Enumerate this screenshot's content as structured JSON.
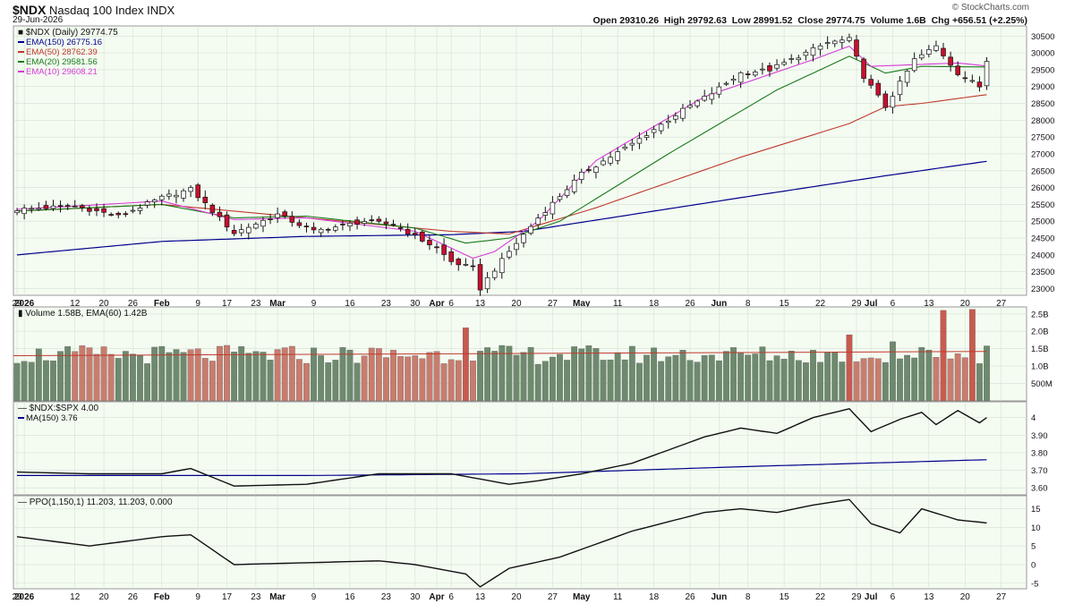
{
  "header": {
    "symbol": "$NDX",
    "name": "Nasdaq 100 Index",
    "exchange": "INDX",
    "date": "29-Jun-2026",
    "brand": "© StockCharts.com",
    "open_label": "Open",
    "open": "29310.26",
    "high_label": "High",
    "high": "29792.63",
    "low_label": "Low",
    "low": "28991.52",
    "close_label": "Close",
    "close": "29774.75",
    "volume_label": "Volume",
    "volume": "1.6B",
    "chg_label": "Chg",
    "chg": "+656.51 (+2.25%)"
  },
  "colors": {
    "panel_bg": "#f4fcf2",
    "up_candle": "#ffffff",
    "down_candle": "#c8102e",
    "ema150": "#00008b",
    "ema50": "#c0392b",
    "ema20": "#1a7a1a",
    "ema10": "#d63ad6",
    "vol_up": "#6e8a6e",
    "vol_down": "#c97c6e",
    "vol_spike_down": "#c85a4f",
    "ratio_line": "#111111",
    "ratio_ma": "#00008b",
    "ppo_line": "#111111",
    "ppo_signal": "#c0392b",
    "ppo_hist": "#1e88e5"
  },
  "chart_data": [
    {
      "type": "candlestick",
      "title": "$NDX (Daily) 29774.75",
      "legend": [
        {
          "label": "EMA(150) 26775.16",
          "color": "#00008b"
        },
        {
          "label": "EMA(50) 28762.39",
          "color": "#c0392b"
        },
        {
          "label": "EMA(20) 29581.56",
          "color": "#1a7a1a"
        },
        {
          "label": "EMA(10) 29608.21",
          "color": "#d63ad6"
        }
      ],
      "legend_position": "top-left",
      "ylim": [
        22800,
        30800
      ],
      "yticks": [
        23000,
        23500,
        24000,
        24500,
        25000,
        25500,
        26000,
        26500,
        27000,
        27500,
        28000,
        28500,
        29000,
        29500,
        30000,
        30500
      ],
      "y_axis_side": "right",
      "close_path": [
        [
          0,
          25350
        ],
        [
          8,
          25450
        ],
        [
          14,
          25150
        ],
        [
          20,
          25700
        ],
        [
          24,
          25950
        ],
        [
          30,
          24650
        ],
        [
          36,
          25200
        ],
        [
          41,
          24700
        ],
        [
          48,
          25000
        ],
        [
          52,
          24900
        ],
        [
          58,
          24200
        ],
        [
          60,
          23800
        ],
        [
          63,
          23600
        ],
        [
          64,
          23000
        ],
        [
          65,
          23300
        ],
        [
          68,
          24100
        ],
        [
          72,
          25100
        ],
        [
          78,
          26400
        ],
        [
          85,
          27300
        ],
        [
          92,
          28300
        ],
        [
          96,
          28800
        ],
        [
          100,
          29400
        ],
        [
          104,
          29500
        ],
        [
          108,
          29900
        ],
        [
          112,
          30300
        ],
        [
          115,
          30400
        ],
        [
          117,
          29300
        ],
        [
          120,
          28400
        ],
        [
          124,
          29800
        ],
        [
          127,
          30200
        ],
        [
          130,
          29400
        ],
        [
          133,
          29000
        ],
        [
          134,
          29774.75
        ]
      ],
      "ema150_path": [
        [
          0,
          24000
        ],
        [
          20,
          24400
        ],
        [
          40,
          24550
        ],
        [
          60,
          24600
        ],
        [
          70,
          24700
        ],
        [
          100,
          25700
        ],
        [
          120,
          26350
        ],
        [
          134,
          26780
        ]
      ],
      "ema50_path": [
        [
          0,
          25300
        ],
        [
          20,
          25500
        ],
        [
          40,
          25100
        ],
        [
          60,
          24700
        ],
        [
          68,
          24620
        ],
        [
          80,
          25400
        ],
        [
          100,
          26900
        ],
        [
          115,
          27900
        ],
        [
          120,
          28400
        ],
        [
          125,
          28500
        ],
        [
          134,
          28760
        ]
      ],
      "ema20_path": [
        [
          0,
          25300
        ],
        [
          20,
          25500
        ],
        [
          30,
          25100
        ],
        [
          40,
          25150
        ],
        [
          55,
          24800
        ],
        [
          62,
          24350
        ],
        [
          68,
          24500
        ],
        [
          75,
          25000
        ],
        [
          90,
          27000
        ],
        [
          105,
          28900
        ],
        [
          115,
          29900
        ],
        [
          120,
          29400
        ],
        [
          125,
          29600
        ],
        [
          134,
          29580
        ]
      ],
      "ema10_path": [
        [
          0,
          25350
        ],
        [
          20,
          25600
        ],
        [
          30,
          25050
        ],
        [
          40,
          25100
        ],
        [
          55,
          24700
        ],
        [
          63,
          23900
        ],
        [
          66,
          24100
        ],
        [
          72,
          25000
        ],
        [
          80,
          26800
        ],
        [
          95,
          28700
        ],
        [
          110,
          29800
        ],
        [
          115,
          30200
        ],
        [
          118,
          29600
        ],
        [
          124,
          29650
        ],
        [
          130,
          29700
        ],
        [
          134,
          29610
        ]
      ]
    },
    {
      "type": "bar",
      "title": "Volume 1.58B, EMA(60) 1.42B",
      "ylim": [
        0,
        2.7
      ],
      "yticks": [
        {
          "v": 0.5,
          "label": "500M"
        },
        {
          "v": 1.0,
          "label": "1.0B"
        },
        {
          "v": 1.5,
          "label": "1.5B"
        },
        {
          "v": 2.0,
          "label": "2.0B"
        },
        {
          "v": 2.5,
          "label": "2.5B"
        }
      ],
      "ema_value": 1.42,
      "spikes": [
        {
          "i": 62,
          "v": 2.1
        },
        {
          "i": 115,
          "v": 1.9
        },
        {
          "i": 121,
          "v": 1.7
        },
        {
          "i": 128,
          "v": 2.6
        },
        {
          "i": 132,
          "v": 2.63
        },
        {
          "i": 134,
          "v": 1.58
        }
      ]
    },
    {
      "type": "line",
      "title": "$NDX:$SPX 4.00",
      "legend": [
        {
          "label": "MA(150) 3.76",
          "color": "#00008b"
        }
      ],
      "ylim": [
        3.56,
        4.09
      ],
      "yticks": [
        3.6,
        3.7,
        3.8,
        3.9,
        4.0
      ],
      "ratio_path": [
        [
          0,
          3.69
        ],
        [
          10,
          3.68
        ],
        [
          20,
          3.68
        ],
        [
          24,
          3.71
        ],
        [
          30,
          3.61
        ],
        [
          40,
          3.62
        ],
        [
          50,
          3.68
        ],
        [
          60,
          3.68
        ],
        [
          68,
          3.62
        ],
        [
          72,
          3.64
        ],
        [
          78,
          3.68
        ],
        [
          85,
          3.74
        ],
        [
          95,
          3.89
        ],
        [
          100,
          3.94
        ],
        [
          105,
          3.91
        ],
        [
          110,
          4.0
        ],
        [
          115,
          4.05
        ],
        [
          118,
          3.92
        ],
        [
          122,
          3.99
        ],
        [
          125,
          4.03
        ],
        [
          127,
          3.96
        ],
        [
          130,
          4.04
        ],
        [
          133,
          3.97
        ],
        [
          134,
          4.0
        ]
      ],
      "ma_path": [
        [
          0,
          3.67
        ],
        [
          40,
          3.67
        ],
        [
          70,
          3.68
        ],
        [
          100,
          3.72
        ],
        [
          134,
          3.76
        ]
      ]
    },
    {
      "type": "line",
      "title": "PPO(1,150,1) 11.203, 11.203, 0.000",
      "ylim": [
        -6.5,
        18.5
      ],
      "yticks": [
        -5,
        0,
        5,
        10,
        15
      ],
      "ppo_path": [
        [
          0,
          7.5
        ],
        [
          10,
          5
        ],
        [
          20,
          7.5
        ],
        [
          24,
          8
        ],
        [
          30,
          0
        ],
        [
          40,
          0.5
        ],
        [
          50,
          1
        ],
        [
          55,
          0
        ],
        [
          62,
          -2.5
        ],
        [
          64,
          -6
        ],
        [
          68,
          -1
        ],
        [
          75,
          2
        ],
        [
          85,
          9
        ],
        [
          95,
          14
        ],
        [
          100,
          15
        ],
        [
          105,
          14
        ],
        [
          110,
          16
        ],
        [
          115,
          17.5
        ],
        [
          118,
          11
        ],
        [
          122,
          8.5
        ],
        [
          125,
          15
        ],
        [
          130,
          12
        ],
        [
          134,
          11.2
        ]
      ]
    }
  ],
  "time_axis": {
    "labels": [
      {
        "i": 0,
        "text": "29"
      },
      {
        "i": 1,
        "text": "2026",
        "bold": true
      },
      {
        "i": 8,
        "text": "12"
      },
      {
        "i": 12,
        "text": "20"
      },
      {
        "i": 16,
        "text": "26"
      },
      {
        "i": 20,
        "text": "Feb",
        "bold": true
      },
      {
        "i": 25,
        "text": "9"
      },
      {
        "i": 29,
        "text": "17"
      },
      {
        "i": 33,
        "text": "23"
      },
      {
        "i": 36,
        "text": "Mar",
        "bold": true
      },
      {
        "i": 41,
        "text": "9"
      },
      {
        "i": 46,
        "text": "16"
      },
      {
        "i": 51,
        "text": "23"
      },
      {
        "i": 55,
        "text": "30"
      },
      {
        "i": 58,
        "text": "Apr",
        "bold": true
      },
      {
        "i": 60,
        "text": "6"
      },
      {
        "i": 64,
        "text": "13"
      },
      {
        "i": 69,
        "text": "20"
      },
      {
        "i": 74,
        "text": "27"
      },
      {
        "i": 78,
        "text": "May",
        "bold": true
      },
      {
        "i": 83,
        "text": "11"
      },
      {
        "i": 88,
        "text": "18"
      },
      {
        "i": 93,
        "text": "26"
      },
      {
        "i": 97,
        "text": "Jun",
        "bold": true
      },
      {
        "i": 101,
        "text": "8"
      },
      {
        "i": 106,
        "text": "15"
      },
      {
        "i": 111,
        "text": "22"
      },
      {
        "i": 116,
        "text": "29"
      },
      {
        "i": 118,
        "text": "Jul",
        "bold": true
      },
      {
        "i": 121,
        "text": "6"
      },
      {
        "i": 126,
        "text": "13"
      },
      {
        "i": 131,
        "text": "20"
      },
      {
        "i": 136,
        "text": "27"
      }
    ]
  }
}
